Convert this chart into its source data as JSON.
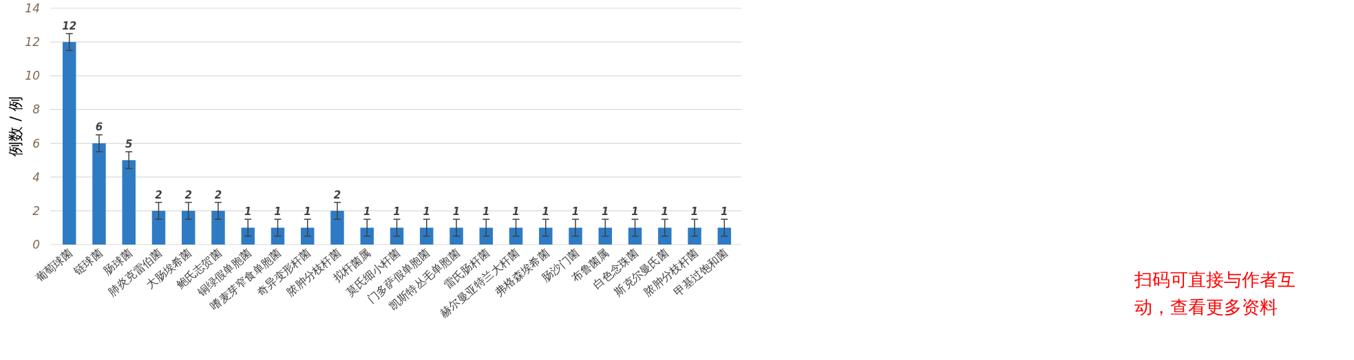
{
  "chart_data": {
    "type": "bar",
    "ylabel": "例数 / 例",
    "categories": [
      "葡萄球菌",
      "链球菌",
      "肠球菌",
      "肺炎克雷伯菌",
      "大肠埃希菌",
      "鲍氏志贺菌",
      "铜绿假单胞菌",
      "嗜麦芽窄食单胞菌",
      "奇异变形杆菌",
      "脓肿分枝杆菌",
      "拟杆菌属",
      "莫氏细小杆菌",
      "门多萨假单胞菌",
      "凯斯特丛毛单胞菌",
      "雷氏肠杆菌",
      "赫尔曼亚特兰大杆菌",
      "弗格森埃希菌",
      "肠沙门菌",
      "布鲁菌属",
      "白色念珠菌",
      "斯克尔曼氏菌",
      "脓肿分枝杆菌",
      "甲基过饱和菌"
    ],
    "values": [
      12,
      6,
      5,
      2,
      2,
      2,
      1,
      1,
      1,
      2,
      1,
      1,
      1,
      1,
      1,
      1,
      1,
      1,
      1,
      1,
      1,
      1,
      1
    ],
    "errors": [
      0.5,
      0.5,
      0.5,
      0.5,
      0.5,
      0.5,
      0.5,
      0.5,
      0.5,
      0.5,
      0.5,
      0.5,
      0.5,
      0.5,
      0.5,
      0.5,
      0.5,
      0.5,
      0.5,
      0.5,
      0.5,
      0.5,
      0.5
    ],
    "color": "#2e7bc4",
    "data_labels": true,
    "grid": "y",
    "ylim": [
      0,
      14
    ],
    "yticks": [
      0,
      2,
      4,
      6,
      8,
      10,
      12,
      14
    ],
    "annotations": [
      "扫码可直接与作者互动，查看更多资料"
    ]
  }
}
